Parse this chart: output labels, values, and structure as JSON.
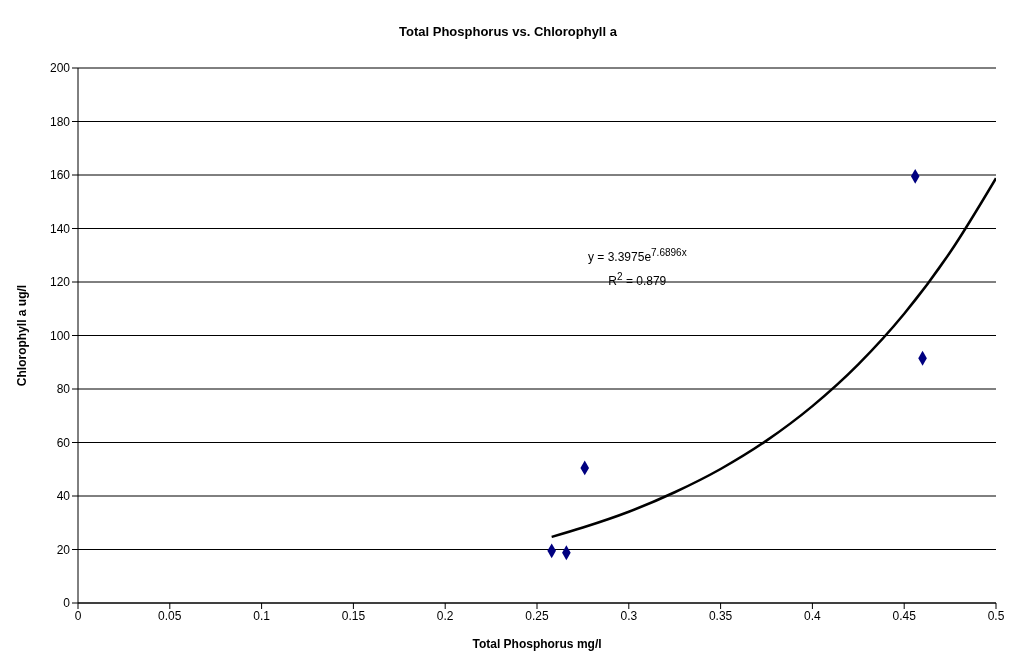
{
  "chart_data": {
    "type": "scatter",
    "title": "Total Phosphorus vs. Chlorophyll a",
    "xlabel": "Total Phosphorus mg/l",
    "ylabel": "Chlorophyll a ug/l",
    "xlim": [
      0,
      0.5
    ],
    "xticks": [
      0,
      0.05,
      0.1,
      0.15,
      0.2,
      0.25,
      0.3,
      0.35,
      0.4,
      0.45,
      0.5
    ],
    "ylim": [
      0,
      200
    ],
    "yticks": [
      0,
      20,
      40,
      60,
      80,
      100,
      120,
      140,
      160,
      180,
      200
    ],
    "grid": "y",
    "legend": false,
    "annotations": [
      "y = 3.3975e$^{7.6896x}$",
      "R$^{2}$ = 0.879"
    ],
    "series": [
      {
        "color": "#000080",
        "marker": "diamond",
        "x": [
          0.258,
          0.266,
          0.276,
          0.456,
          0.46
        ],
        "values": [
          19.5,
          18.8,
          50.5,
          159.5,
          91.5
        ]
      },
      {
        "type": "line",
        "color": "#000000",
        "marker": "none",
        "line_style": "solid",
        "x": [
          0.258,
          0.275,
          0.3,
          0.325,
          0.35,
          0.375,
          0.4,
          0.425,
          0.45,
          0.475,
          0.5
        ],
        "values": [
          24.7,
          28.2,
          34.1,
          41.4,
          50.1,
          60.7,
          73.6,
          89.2,
          108.1,
          131.1,
          158.8
        ]
      }
    ]
  }
}
